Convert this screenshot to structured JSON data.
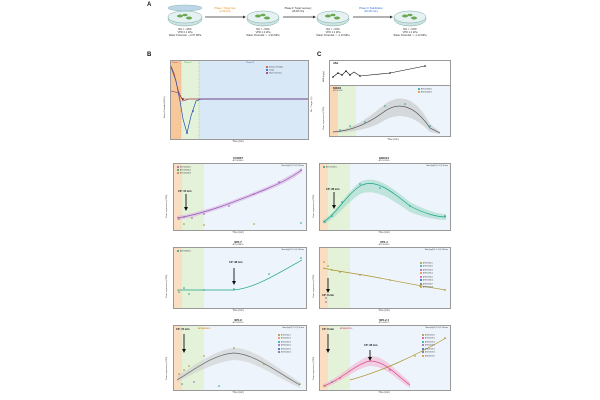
{
  "panel_labels": {
    "a": "A",
    "b": "B",
    "c": "C"
  },
  "stage_dishes": [
    {
      "rh": "RH = ~95%",
      "vpd": "VPD 0.1 kPa",
      "wp": "Water Potential: ~-0.57 MPa"
    },
    {
      "rh": "RH = ~50%",
      "vpd": "VPD 1.2 kPa",
      "wp": "Water Potential: ≈ -1.90 MPa"
    },
    {
      "rh": "RH = ~50%",
      "vpd": "VPD 1.2 kPa",
      "wp": "Water Potential: ≈ -1.10 MPa"
    },
    {
      "rh": "RH = ~50%",
      "vpd": "VPD 1.2 kPa",
      "wp": "Water Potential: ≈ -1.10 MPa"
    }
  ],
  "stage_arrows": [
    {
      "label": "Phase I: Turgor loss",
      "time": "(0-15 min)",
      "color": "#e08a1e"
    },
    {
      "label": "Phase II: Turgor recovery",
      "time": "(15-60 min)",
      "color": "#333333"
    },
    {
      "label": "Phase III: Stabilization",
      "time": "(60-240 min)",
      "color": "#2a6fcf"
    }
  ],
  "panel_b": {
    "phases": [
      "Phase I",
      "Phase II",
      "Phase III"
    ],
    "legend": [
      "Relative Humidity",
      "Turgor",
      "Water Potential"
    ],
    "xlabel": "Time (min)",
    "ylabel_left": "Water Potential (MPa)",
    "ylabel_right": "RH / Turgor (%)"
  },
  "panel_c": {
    "top_title": "ABA",
    "top_ylabel": "ABA (ng/g)",
    "bottom_title": "NCED3",
    "bottom_sub": "AT3G14440",
    "legend": [
      "AT3G14440.1",
      "AT3G14440.2"
    ],
    "xlabel": "Time (min)",
    "ylabel": "Gene expression (TPM)"
  },
  "gene_panels": [
    {
      "title": "COR47",
      "sub": "AT1G20440",
      "stat": "Slow (logFC) 2.3 @ 240 min",
      "cp": "CP: 15 min",
      "legend": [
        "AT1G20440.1",
        "AT1G20440.2",
        "AT1G20440.3"
      ],
      "xlabel": "Time (min)",
      "ylabel": "Gene expression (TPM)"
    },
    {
      "title": "ERD14",
      "sub": "AT1G76180",
      "stat": "Slow (logFC) 1.4 @ 30 min",
      "cp": "CP: 28 min",
      "legend": [
        "AT1G76180.1"
      ],
      "xlabel": "Time (min)",
      "ylabel": "Gene expression (TPM)"
    },
    {
      "title": "SPL7",
      "sub": "AT5G18830",
      "stat": "Slow (logFC) 1.6 @ 240 min",
      "cp": "CP: 38 min",
      "legend": [
        "AT5G18830.1"
      ],
      "xlabel": "Time (min)",
      "ylabel": "Gene expression (TPM)"
    },
    {
      "title": "PPL1",
      "sub": "AT3G55330",
      "stat": "Slow (logFC) -1.4 @ 240 min",
      "cp": "CP: 8 min",
      "legend": [
        "AT3G55330.1",
        "AT3G55330.2",
        "AT3G55330.3",
        "AT3G55330.4",
        "AT3G55330.5",
        "AT3G55330.6",
        "AT3G55330.7",
        "AT3G55330.8"
      ],
      "xlabel": "Time (min)",
      "ylabel": "Gene expression (TPM)"
    },
    {
      "title": "SPL9",
      "sub": "AT2G42200",
      "stat": "Slow (logFC) 1.3 @ 90 min",
      "cp": "CP: 15 min",
      "highlight": "AT2G42200.2",
      "legend": [
        "AT2G42200.1",
        "AT2G42200.2",
        "AT2G42200.3",
        "AT2G42200.4",
        "AT2G42200.5",
        "AT2G42200.6"
      ],
      "xlabel": "Time (min)",
      "ylabel": "Gene expression (TPM)"
    },
    {
      "title": "SPL2.1",
      "sub": "AT5G43270",
      "stat": "Slow (logFC) 1.8 @ 240 min",
      "cp": "CP: 8 min",
      "cp2": "CP: 28 min",
      "highlight": "AT5G43270.2",
      "legend": [
        "AT5G43270.1",
        "AT5G43270.2",
        "AT5G43270.3",
        "AT5G43270.4",
        "AT5G43270.5",
        "AT5G43270.6",
        "AT5G43270.7"
      ],
      "xlabel": "Time (min)",
      "ylabel": "Gene expression (TPM)"
    }
  ],
  "x_ticks": [
    "0",
    "15",
    "30",
    "60",
    "90",
    "120",
    "180",
    "240"
  ],
  "colors": {
    "phase1": "#f6c89a",
    "phase2": "#d9eecb",
    "phase3": "#d6e6f7",
    "purple": "#9b59b6",
    "teal": "#1aa38a",
    "olive": "#a8912a",
    "grey": "#666666",
    "pink": "#e0458f",
    "blue": "#1f5fbf",
    "orange": "#e08a1e"
  }
}
